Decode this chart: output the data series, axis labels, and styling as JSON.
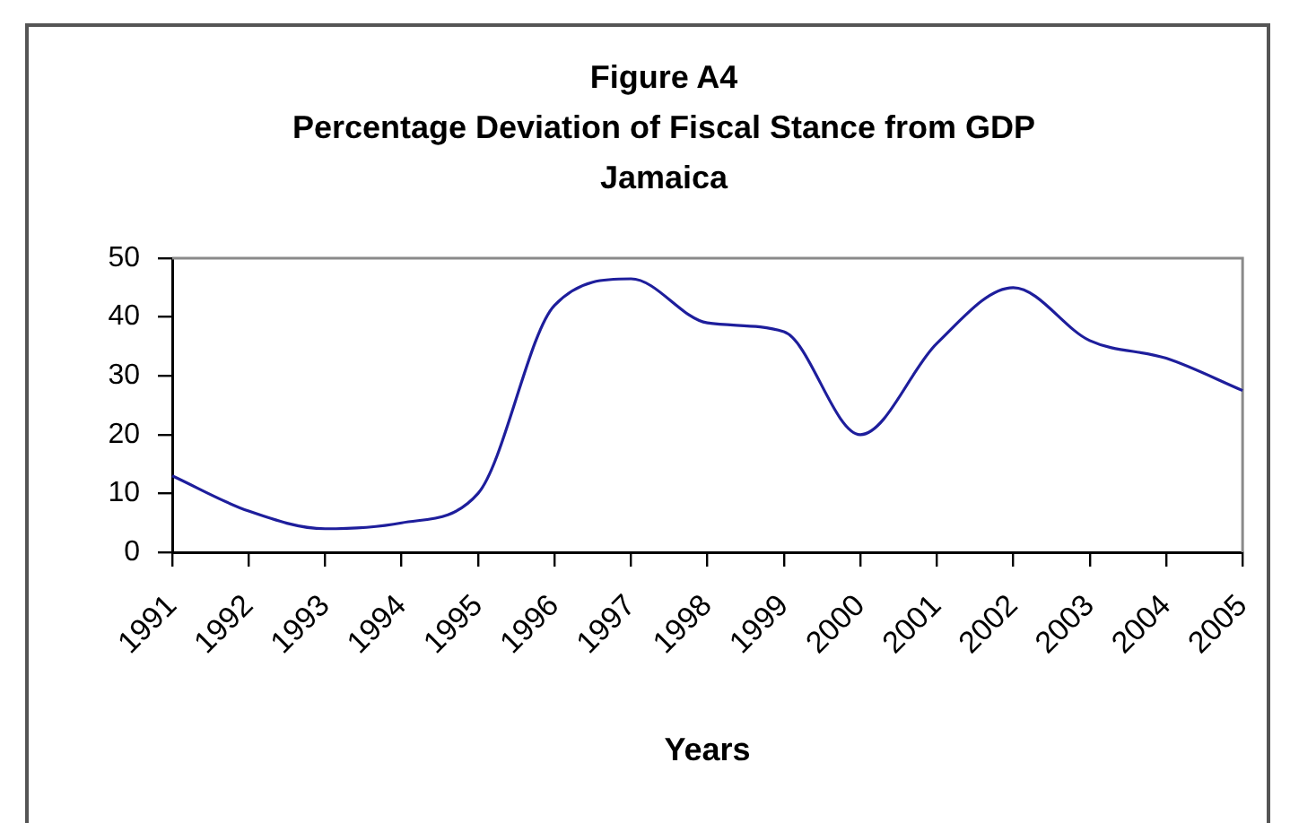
{
  "chart_data": {
    "type": "line",
    "title": "Figure A4",
    "subtitle": "Percentage Deviation of Fiscal Stance from GDP\nJamaica",
    "xlabel": "Years",
    "categories": [
      "1991",
      "1992",
      "1993",
      "1994",
      "1995",
      "1996",
      "1997",
      "1998",
      "1999",
      "2000",
      "2001",
      "2002",
      "2003",
      "2004",
      "2005"
    ],
    "series": [
      {
        "color": "#1e1e9c",
        "values": [
          13,
          7,
          4,
          5,
          10,
          42,
          46.5,
          39,
          37.5,
          20,
          35.5,
          45,
          36,
          33,
          27.5
        ]
      }
    ],
    "ylim": [
      0,
      50
    ],
    "yticks": [
      0,
      10,
      20,
      30,
      40,
      50
    ],
    "grid": false,
    "legend": false,
    "marker": "none"
  }
}
